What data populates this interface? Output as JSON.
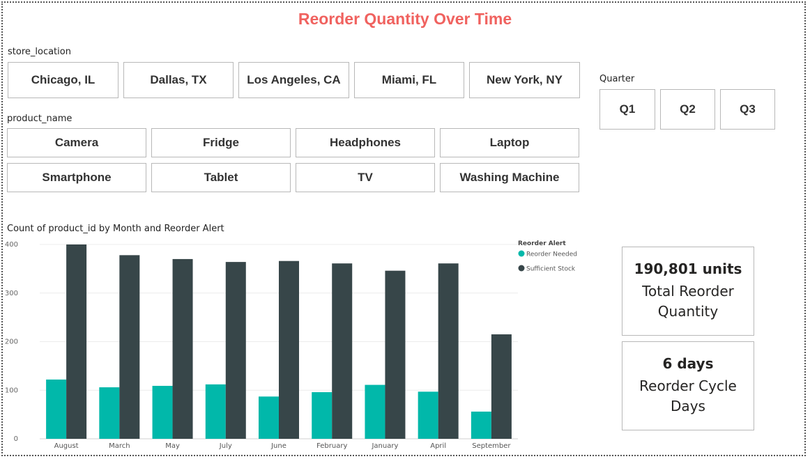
{
  "title": "Reorder Quantity Over Time",
  "store_slicer": {
    "label": "store_location",
    "options": [
      "Chicago, IL",
      "Dallas, TX",
      "Los Angeles, CA",
      "Miami, FL",
      "New York, NY"
    ]
  },
  "product_slicer": {
    "label": "product_name",
    "options": [
      "Camera",
      "Fridge",
      "Headphones",
      "Laptop",
      "Smartphone",
      "Tablet",
      "TV",
      "Washing Machine"
    ]
  },
  "quarter_slicer": {
    "label": "Quarter",
    "options": [
      "Q1",
      "Q2",
      "Q3"
    ]
  },
  "cards": {
    "total_reorder": {
      "value": "190,801 units",
      "label": "Total Reorder Quantity"
    },
    "cycle_days": {
      "value": "6 days",
      "label": "Reorder Cycle Days"
    }
  },
  "chart_data": {
    "type": "bar",
    "title": "Count of product_id by Month and Reorder Alert",
    "legend_title": "Reorder Alert",
    "legend_position": "top-right",
    "categories": [
      "August",
      "March",
      "May",
      "July",
      "June",
      "February",
      "January",
      "April",
      "September"
    ],
    "series": [
      {
        "name": "Reorder Needed",
        "color": "#01b8aa",
        "values": [
          122,
          106,
          109,
          112,
          87,
          96,
          111,
          97,
          56
        ]
      },
      {
        "name": "Sufficient Stock",
        "color": "#374649",
        "values": [
          400,
          378,
          370,
          364,
          366,
          361,
          346,
          361,
          215
        ]
      }
    ],
    "ylim": [
      0,
      400
    ],
    "yticks": [
      0,
      100,
      200,
      300,
      400
    ],
    "grid": true
  }
}
